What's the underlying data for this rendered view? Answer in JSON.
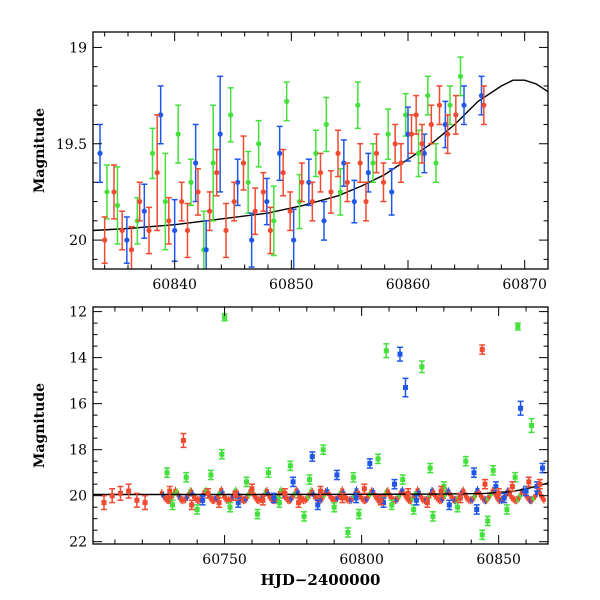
{
  "palette": {
    "green": "#44e03c",
    "blue": "#1f57e8",
    "red": "#f04a30",
    "model": "#000000"
  },
  "chart_data": [
    {
      "id": "top",
      "type": "scatter",
      "title": "",
      "xlabel": "",
      "ylabel": "Magnitude",
      "xlim": [
        60833,
        60872
      ],
      "ylim": [
        20.15,
        18.92
      ],
      "y_inverted": true,
      "xticks": [
        60840,
        60850,
        60860,
        60870
      ],
      "yticks": [
        19,
        19.5,
        20
      ],
      "ytick_labels": [
        "19",
        "19.5",
        "20"
      ],
      "grid": false,
      "legend": "none",
      "model_curve": {
        "x": [
          60833,
          60836,
          60840,
          60844,
          60848,
          60851,
          60854,
          60856,
          60858,
          60860,
          60862,
          60864,
          60866,
          60868,
          60869,
          60870,
          60871,
          60872
        ],
        "y": [
          19.95,
          19.94,
          19.92,
          19.89,
          19.86,
          19.82,
          19.77,
          19.72,
          19.66,
          19.58,
          19.5,
          19.4,
          19.28,
          19.2,
          19.17,
          19.17,
          19.19,
          19.23
        ]
      },
      "series": [
        {
          "color": "green",
          "points": [
            [
              60834.2,
              19.75,
              0.14
            ],
            [
              60835.1,
              19.82,
              0.2
            ],
            [
              60836.8,
              19.9,
              0.12
            ],
            [
              60838.1,
              19.55,
              0.13
            ],
            [
              60839.2,
              19.8,
              0.25
            ],
            [
              60840.3,
              19.45,
              0.15
            ],
            [
              60841.4,
              19.7,
              0.12
            ],
            [
              60842.5,
              20.05,
              0.2
            ],
            [
              60843.3,
              19.6,
              0.3
            ],
            [
              60844.8,
              19.35,
              0.14
            ],
            [
              60846.3,
              19.7,
              0.16
            ],
            [
              60847.2,
              19.5,
              0.12
            ],
            [
              60848.5,
              19.9,
              0.18
            ],
            [
              60849.6,
              19.28,
              0.1
            ],
            [
              60850.7,
              19.8,
              0.14
            ],
            [
              60852.1,
              19.55,
              0.12
            ],
            [
              60853.0,
              19.4,
              0.14
            ],
            [
              60854.2,
              19.75,
              0.12
            ],
            [
              60855.7,
              19.3,
              0.12
            ],
            [
              60857.0,
              19.6,
              0.1
            ],
            [
              60858.3,
              19.45,
              0.13
            ],
            [
              60859.8,
              19.35,
              0.11
            ],
            [
              60860.9,
              19.55,
              0.12
            ],
            [
              60861.7,
              19.25,
              0.1
            ],
            [
              60862.4,
              19.6,
              0.1
            ],
            [
              60863.6,
              19.3,
              0.1
            ],
            [
              60864.5,
              19.15,
              0.1
            ]
          ]
        },
        {
          "color": "blue",
          "points": [
            [
              60833.6,
              19.55,
              0.15
            ],
            [
              60835.9,
              20.0,
              0.12
            ],
            [
              60837.4,
              19.85,
              0.14
            ],
            [
              60838.8,
              19.35,
              0.15
            ],
            [
              60840.0,
              19.95,
              0.16
            ],
            [
              60841.8,
              19.6,
              0.2
            ],
            [
              60842.7,
              20.05,
              0.15
            ],
            [
              60843.9,
              19.45,
              0.3
            ],
            [
              60845.4,
              19.7,
              0.12
            ],
            [
              60846.6,
              20.0,
              0.14
            ],
            [
              60847.9,
              19.8,
              0.12
            ],
            [
              60849.0,
              19.55,
              0.14
            ],
            [
              60850.2,
              20.0,
              0.16
            ],
            [
              60851.5,
              19.7,
              0.12
            ],
            [
              60852.8,
              19.9,
              0.1
            ],
            [
              60854.5,
              19.6,
              0.12
            ],
            [
              60855.4,
              19.8,
              0.11
            ],
            [
              60856.6,
              19.65,
              0.1
            ],
            [
              60858.6,
              19.75,
              0.12
            ],
            [
              60860.0,
              19.45,
              0.14
            ],
            [
              60861.4,
              19.55,
              0.1
            ],
            [
              60863.2,
              19.4,
              0.12
            ],
            [
              60864.8,
              19.3,
              0.1
            ],
            [
              60866.3,
              19.25,
              0.1
            ]
          ]
        },
        {
          "color": "red",
          "points": [
            [
              60834.0,
              20.0,
              0.12
            ],
            [
              60834.8,
              19.75,
              0.14
            ],
            [
              60835.5,
              19.95,
              0.1
            ],
            [
              60836.3,
              20.05,
              0.12
            ],
            [
              60837.0,
              19.8,
              0.1
            ],
            [
              60837.8,
              19.95,
              0.12
            ],
            [
              60838.5,
              19.65,
              0.3
            ],
            [
              60839.5,
              19.9,
              0.12
            ],
            [
              60840.6,
              19.8,
              0.1
            ],
            [
              60841.1,
              19.95,
              0.14
            ],
            [
              60842.0,
              19.75,
              0.12
            ],
            [
              60843.0,
              19.85,
              0.1
            ],
            [
              60843.6,
              19.65,
              0.12
            ],
            [
              60844.4,
              19.95,
              0.14
            ],
            [
              60845.1,
              19.8,
              0.1
            ],
            [
              60845.9,
              19.6,
              0.14
            ],
            [
              60846.9,
              19.85,
              0.12
            ],
            [
              60847.6,
              19.75,
              0.1
            ],
            [
              60848.2,
              19.95,
              0.12
            ],
            [
              60849.3,
              19.65,
              0.12
            ],
            [
              60849.9,
              19.85,
              0.1
            ],
            [
              60850.9,
              19.7,
              0.1
            ],
            [
              60851.8,
              19.8,
              0.1
            ],
            [
              60852.5,
              19.65,
              0.1
            ],
            [
              60853.4,
              19.75,
              0.11
            ],
            [
              60854.0,
              19.55,
              0.12
            ],
            [
              60854.8,
              19.7,
              0.1
            ],
            [
              60855.9,
              19.6,
              0.1
            ],
            [
              60856.4,
              19.8,
              0.1
            ],
            [
              60857.3,
              19.55,
              0.1
            ],
            [
              60857.9,
              19.7,
              0.1
            ],
            [
              60858.9,
              19.5,
              0.1
            ],
            [
              60859.4,
              19.6,
              0.1
            ],
            [
              60860.3,
              19.45,
              0.1
            ],
            [
              60860.7,
              19.35,
              0.1
            ],
            [
              60861.2,
              19.5,
              0.1
            ],
            [
              60862.0,
              19.4,
              0.1
            ],
            [
              60862.7,
              19.3,
              0.1
            ],
            [
              60863.4,
              19.45,
              0.1
            ],
            [
              60864.1,
              19.35,
              0.1
            ],
            [
              60866.5,
              19.3,
              0.1
            ]
          ]
        }
      ]
    },
    {
      "id": "bottom",
      "type": "scatter",
      "title": "",
      "xlabel": "HJD−2400000",
      "ylabel": "Magnitude",
      "xlim": [
        60702,
        60868
      ],
      "ylim": [
        22.1,
        11.8
      ],
      "y_inverted": true,
      "xticks": [
        60750,
        60800,
        60850
      ],
      "yticks": [
        12,
        14,
        16,
        18,
        20,
        22
      ],
      "ytick_labels": [
        "12",
        "14",
        "16",
        "18",
        "20",
        "22"
      ],
      "grid": false,
      "legend": "none",
      "model_curve": {
        "x": [
          60702,
          60760,
          60800,
          60830,
          60845,
          60855,
          60862,
          60868
        ],
        "y": [
          19.95,
          19.95,
          19.94,
          19.93,
          19.9,
          19.82,
          19.65,
          19.45
        ]
      },
      "series": [
        {
          "color": "green",
          "points": [
            [
              60750,
              12.25,
              0.15
            ],
            [
              60809,
              13.7,
              0.3
            ],
            [
              60822,
              14.4,
              0.25
            ],
            [
              60857,
              12.65,
              0.15
            ],
            [
              60862,
              16.95,
              0.3
            ],
            [
              60729,
              19.0,
              0.2
            ],
            [
              60736,
              19.2,
              0.2
            ],
            [
              60745,
              19.1,
              0.2
            ],
            [
              60749,
              18.2,
              0.2
            ],
            [
              60758,
              19.4,
              0.2
            ],
            [
              60766,
              19.0,
              0.2
            ],
            [
              60774,
              18.7,
              0.2
            ],
            [
              60781,
              19.3,
              0.2
            ],
            [
              60786,
              18.0,
              0.2
            ],
            [
              60797,
              19.2,
              0.2
            ],
            [
              60806,
              18.4,
              0.2
            ],
            [
              60815,
              19.3,
              0.2
            ],
            [
              60825,
              18.8,
              0.2
            ],
            [
              60830,
              19.6,
              0.2
            ],
            [
              60838,
              18.5,
              0.2
            ],
            [
              60848,
              18.9,
              0.2
            ],
            [
              60856,
              19.2,
              0.2
            ],
            [
              60731,
              20.4,
              0.2
            ],
            [
              60740,
              20.6,
              0.2
            ],
            [
              60752,
              20.5,
              0.2
            ],
            [
              60762,
              20.8,
              0.2
            ],
            [
              60770,
              20.3,
              0.2
            ],
            [
              60779,
              20.9,
              0.2
            ],
            [
              60790,
              20.5,
              0.2
            ],
            [
              60799,
              20.8,
              0.2
            ],
            [
              60811,
              20.4,
              0.2
            ],
            [
              60819,
              20.6,
              0.2
            ],
            [
              60826,
              20.9,
              0.2
            ],
            [
              60835,
              20.5,
              0.2
            ],
            [
              60846,
              21.1,
              0.2
            ],
            [
              60853,
              20.6,
              0.2
            ],
            [
              60844,
              21.7,
              0.2
            ],
            [
              60795,
              21.6,
              0.2
            ]
          ]
        },
        {
          "color": "blue",
          "points": [
            [
              60814,
              13.85,
              0.3
            ],
            [
              60816,
              15.3,
              0.4
            ],
            [
              60858,
              16.2,
              0.3
            ],
            [
              60775,
              19.4,
              0.2
            ],
            [
              60782,
              18.3,
              0.2
            ],
            [
              60791,
              19.1,
              0.2
            ],
            [
              60803,
              18.6,
              0.2
            ],
            [
              60812,
              19.5,
              0.2
            ],
            [
              60841,
              19.0,
              0.2
            ],
            [
              60849,
              19.6,
              0.2
            ],
            [
              60866,
              18.8,
              0.2
            ],
            [
              60742,
              20.2,
              0.2
            ],
            [
              60755,
              20.3,
              0.2
            ],
            [
              60768,
              20.1,
              0.2
            ],
            [
              60784,
              20.4,
              0.2
            ],
            [
              60798,
              20.1,
              0.2
            ],
            [
              60808,
              20.3,
              0.2
            ],
            [
              60820,
              20.2,
              0.2
            ],
            [
              60832,
              20.4,
              0.2
            ],
            [
              60842,
              20.6,
              0.2
            ],
            [
              60852,
              20.1,
              0.2
            ],
            [
              60860,
              19.8,
              0.2
            ],
            [
              60864,
              19.6,
              0.2
            ]
          ]
        },
        {
          "color": "red",
          "points": [
            [
              60735,
              17.6,
              0.3
            ],
            [
              60844,
              13.65,
              0.2
            ],
            [
              60706,
              20.3,
              0.3
            ],
            [
              60709,
              20.0,
              0.3
            ],
            [
              60712,
              19.9,
              0.3
            ],
            [
              60715,
              19.8,
              0.3
            ],
            [
              60718,
              20.2,
              0.3
            ],
            [
              60721,
              20.3,
              0.3
            ],
            [
              60730,
              19.8,
              0.2
            ],
            [
              60738,
              20.4,
              0.2
            ],
            [
              60744,
              19.9,
              0.2
            ],
            [
              60748,
              20.3,
              0.2
            ],
            [
              60754,
              20.0,
              0.2
            ],
            [
              60760,
              19.7,
              0.2
            ],
            [
              60764,
              20.2,
              0.2
            ],
            [
              60772,
              19.9,
              0.2
            ],
            [
              60777,
              20.3,
              0.2
            ],
            [
              60785,
              19.8,
              0.2
            ],
            [
              60793,
              20.1,
              0.2
            ],
            [
              60801,
              19.7,
              0.2
            ],
            [
              60807,
              20.2,
              0.2
            ],
            [
              60817,
              19.9,
              0.2
            ],
            [
              60824,
              20.3,
              0.2
            ],
            [
              60829,
              19.8,
              0.2
            ],
            [
              60836,
              20.1,
              0.2
            ],
            [
              60845,
              19.5,
              0.2
            ],
            [
              60850,
              19.9,
              0.2
            ],
            [
              60855,
              19.6,
              0.2
            ],
            [
              60861,
              19.4,
              0.2
            ],
            [
              60865,
              19.5,
              0.2
            ]
          ]
        }
      ],
      "bands": [
        {
          "x0": 60727,
          "x1": 60867,
          "y0": 19.75,
          "y1": 20.2
        }
      ]
    }
  ]
}
